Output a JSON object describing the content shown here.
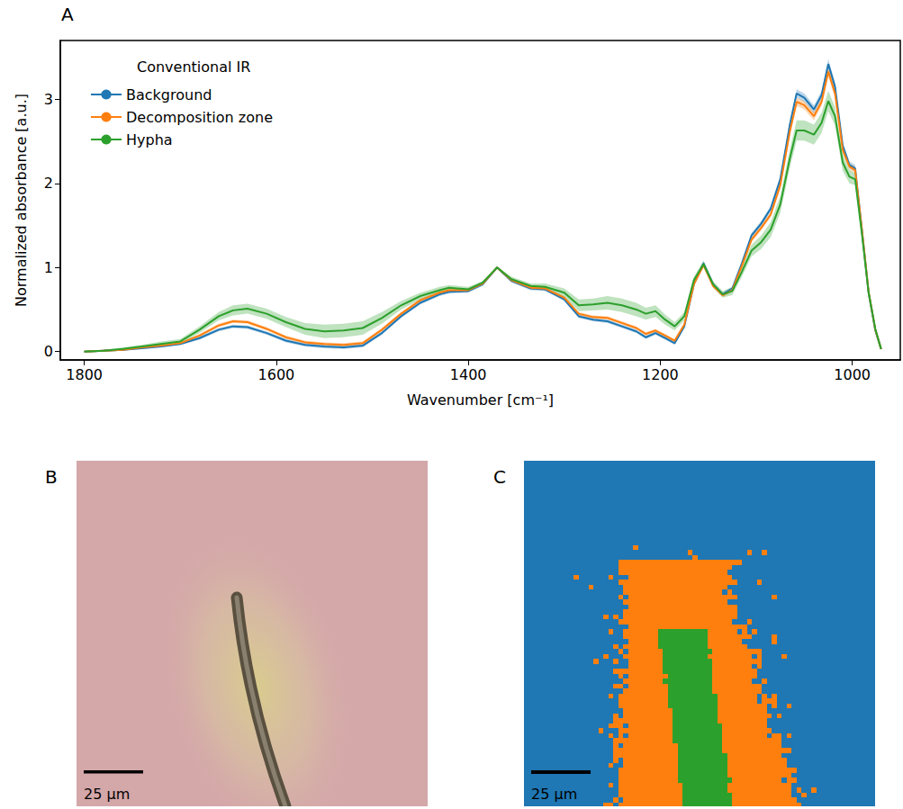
{
  "chart_data": {
    "type": "line",
    "panel": "A",
    "legend_title": "Conventional IR",
    "xlabel": "Wavenumber [cm⁻¹]",
    "ylabel": "Normalized absorbance [a.u.]",
    "xlim": [
      1825,
      950
    ],
    "xticks": [
      1800,
      1600,
      1400,
      1200,
      1000
    ],
    "ylim": [
      -0.1,
      3.7
    ],
    "yticks": [
      0,
      1,
      2,
      3
    ],
    "grid": false,
    "legend": "upper left",
    "x": [
      1800,
      1780,
      1760,
      1740,
      1720,
      1700,
      1680,
      1660,
      1645,
      1630,
      1610,
      1590,
      1570,
      1550,
      1530,
      1510,
      1490,
      1470,
      1450,
      1430,
      1420,
      1400,
      1385,
      1370,
      1355,
      1335,
      1320,
      1300,
      1285,
      1270,
      1255,
      1240,
      1225,
      1215,
      1205,
      1195,
      1185,
      1175,
      1165,
      1155,
      1145,
      1135,
      1125,
      1115,
      1105,
      1095,
      1085,
      1075,
      1065,
      1058,
      1050,
      1040,
      1032,
      1025,
      1018,
      1010,
      1003,
      997,
      990,
      983,
      976,
      970
    ],
    "series": [
      {
        "name": "Background",
        "color": "#1f77b4",
        "values": [
          0,
          0.01,
          0.02,
          0.04,
          0.06,
          0.09,
          0.16,
          0.26,
          0.3,
          0.29,
          0.22,
          0.13,
          0.08,
          0.06,
          0.05,
          0.07,
          0.22,
          0.42,
          0.58,
          0.68,
          0.71,
          0.72,
          0.8,
          1.0,
          0.84,
          0.75,
          0.74,
          0.62,
          0.42,
          0.38,
          0.36,
          0.3,
          0.24,
          0.17,
          0.22,
          0.16,
          0.1,
          0.3,
          0.8,
          1.05,
          0.8,
          0.68,
          0.75,
          1.05,
          1.38,
          1.52,
          1.7,
          2.05,
          2.7,
          3.07,
          3.02,
          2.88,
          3.05,
          3.42,
          3.15,
          2.45,
          2.22,
          2.18,
          1.45,
          0.7,
          0.25,
          0.03
        ],
        "error": [
          0.01,
          0.01,
          0.01,
          0.01,
          0.01,
          0.01,
          0.02,
          0.02,
          0.02,
          0.02,
          0.02,
          0.02,
          0.02,
          0.02,
          0.02,
          0.02,
          0.02,
          0.02,
          0.02,
          0.02,
          0.02,
          0.02,
          0.02,
          0.01,
          0.02,
          0.02,
          0.02,
          0.02,
          0.02,
          0.02,
          0.02,
          0.02,
          0.02,
          0.02,
          0.02,
          0.02,
          0.02,
          0.02,
          0.02,
          0.03,
          0.02,
          0.02,
          0.02,
          0.03,
          0.03,
          0.03,
          0.03,
          0.04,
          0.05,
          0.05,
          0.05,
          0.05,
          0.05,
          0.06,
          0.05,
          0.04,
          0.04,
          0.04,
          0.03,
          0.02,
          0.01,
          0.01
        ]
      },
      {
        "name": "Decomposition zone",
        "color": "#ff7f0e",
        "values": [
          0,
          0.01,
          0.02,
          0.05,
          0.07,
          0.1,
          0.19,
          0.31,
          0.36,
          0.35,
          0.27,
          0.17,
          0.11,
          0.09,
          0.08,
          0.1,
          0.26,
          0.45,
          0.61,
          0.7,
          0.73,
          0.73,
          0.81,
          1.0,
          0.85,
          0.76,
          0.75,
          0.64,
          0.45,
          0.41,
          0.4,
          0.34,
          0.28,
          0.21,
          0.25,
          0.19,
          0.13,
          0.32,
          0.8,
          1.03,
          0.78,
          0.67,
          0.73,
          1.02,
          1.33,
          1.47,
          1.63,
          1.98,
          2.62,
          2.97,
          2.93,
          2.8,
          2.97,
          3.33,
          3.07,
          2.4,
          2.2,
          2.16,
          1.45,
          0.71,
          0.26,
          0.03
        ],
        "error": [
          0.01,
          0.01,
          0.01,
          0.01,
          0.01,
          0.01,
          0.02,
          0.02,
          0.02,
          0.02,
          0.02,
          0.02,
          0.02,
          0.02,
          0.02,
          0.02,
          0.02,
          0.02,
          0.02,
          0.02,
          0.02,
          0.02,
          0.02,
          0.01,
          0.02,
          0.02,
          0.02,
          0.02,
          0.02,
          0.02,
          0.02,
          0.02,
          0.02,
          0.02,
          0.02,
          0.02,
          0.02,
          0.02,
          0.02,
          0.03,
          0.02,
          0.02,
          0.02,
          0.03,
          0.03,
          0.03,
          0.03,
          0.04,
          0.05,
          0.05,
          0.05,
          0.05,
          0.05,
          0.06,
          0.05,
          0.04,
          0.04,
          0.04,
          0.03,
          0.02,
          0.01,
          0.01
        ]
      },
      {
        "name": "Hypha",
        "color": "#2ca02c",
        "values": [
          0,
          0.01,
          0.03,
          0.06,
          0.09,
          0.12,
          0.26,
          0.42,
          0.49,
          0.51,
          0.45,
          0.35,
          0.27,
          0.24,
          0.25,
          0.28,
          0.4,
          0.55,
          0.66,
          0.73,
          0.76,
          0.74,
          0.82,
          1.0,
          0.86,
          0.78,
          0.77,
          0.7,
          0.55,
          0.56,
          0.58,
          0.55,
          0.5,
          0.45,
          0.48,
          0.38,
          0.3,
          0.42,
          0.85,
          1.04,
          0.8,
          0.68,
          0.72,
          0.95,
          1.2,
          1.3,
          1.45,
          1.75,
          2.3,
          2.63,
          2.63,
          2.58,
          2.72,
          2.98,
          2.8,
          2.25,
          2.08,
          2.05,
          1.4,
          0.7,
          0.27,
          0.03
        ],
        "error": [
          0.01,
          0.01,
          0.02,
          0.02,
          0.03,
          0.03,
          0.04,
          0.05,
          0.06,
          0.06,
          0.06,
          0.06,
          0.07,
          0.08,
          0.08,
          0.08,
          0.07,
          0.05,
          0.04,
          0.04,
          0.03,
          0.03,
          0.02,
          0.01,
          0.03,
          0.03,
          0.04,
          0.05,
          0.07,
          0.07,
          0.08,
          0.08,
          0.08,
          0.07,
          0.07,
          0.06,
          0.05,
          0.05,
          0.04,
          0.04,
          0.04,
          0.04,
          0.05,
          0.06,
          0.07,
          0.08,
          0.09,
          0.1,
          0.11,
          0.12,
          0.12,
          0.12,
          0.12,
          0.12,
          0.11,
          0.1,
          0.08,
          0.07,
          0.05,
          0.03,
          0.02,
          0.01
        ]
      }
    ]
  },
  "panels": [
    {
      "panel": "B",
      "type": "micrograph",
      "scale_bar": "25 µm"
    },
    {
      "panel": "C",
      "type": "classification map",
      "scale_bar": "25 µm"
    }
  ]
}
